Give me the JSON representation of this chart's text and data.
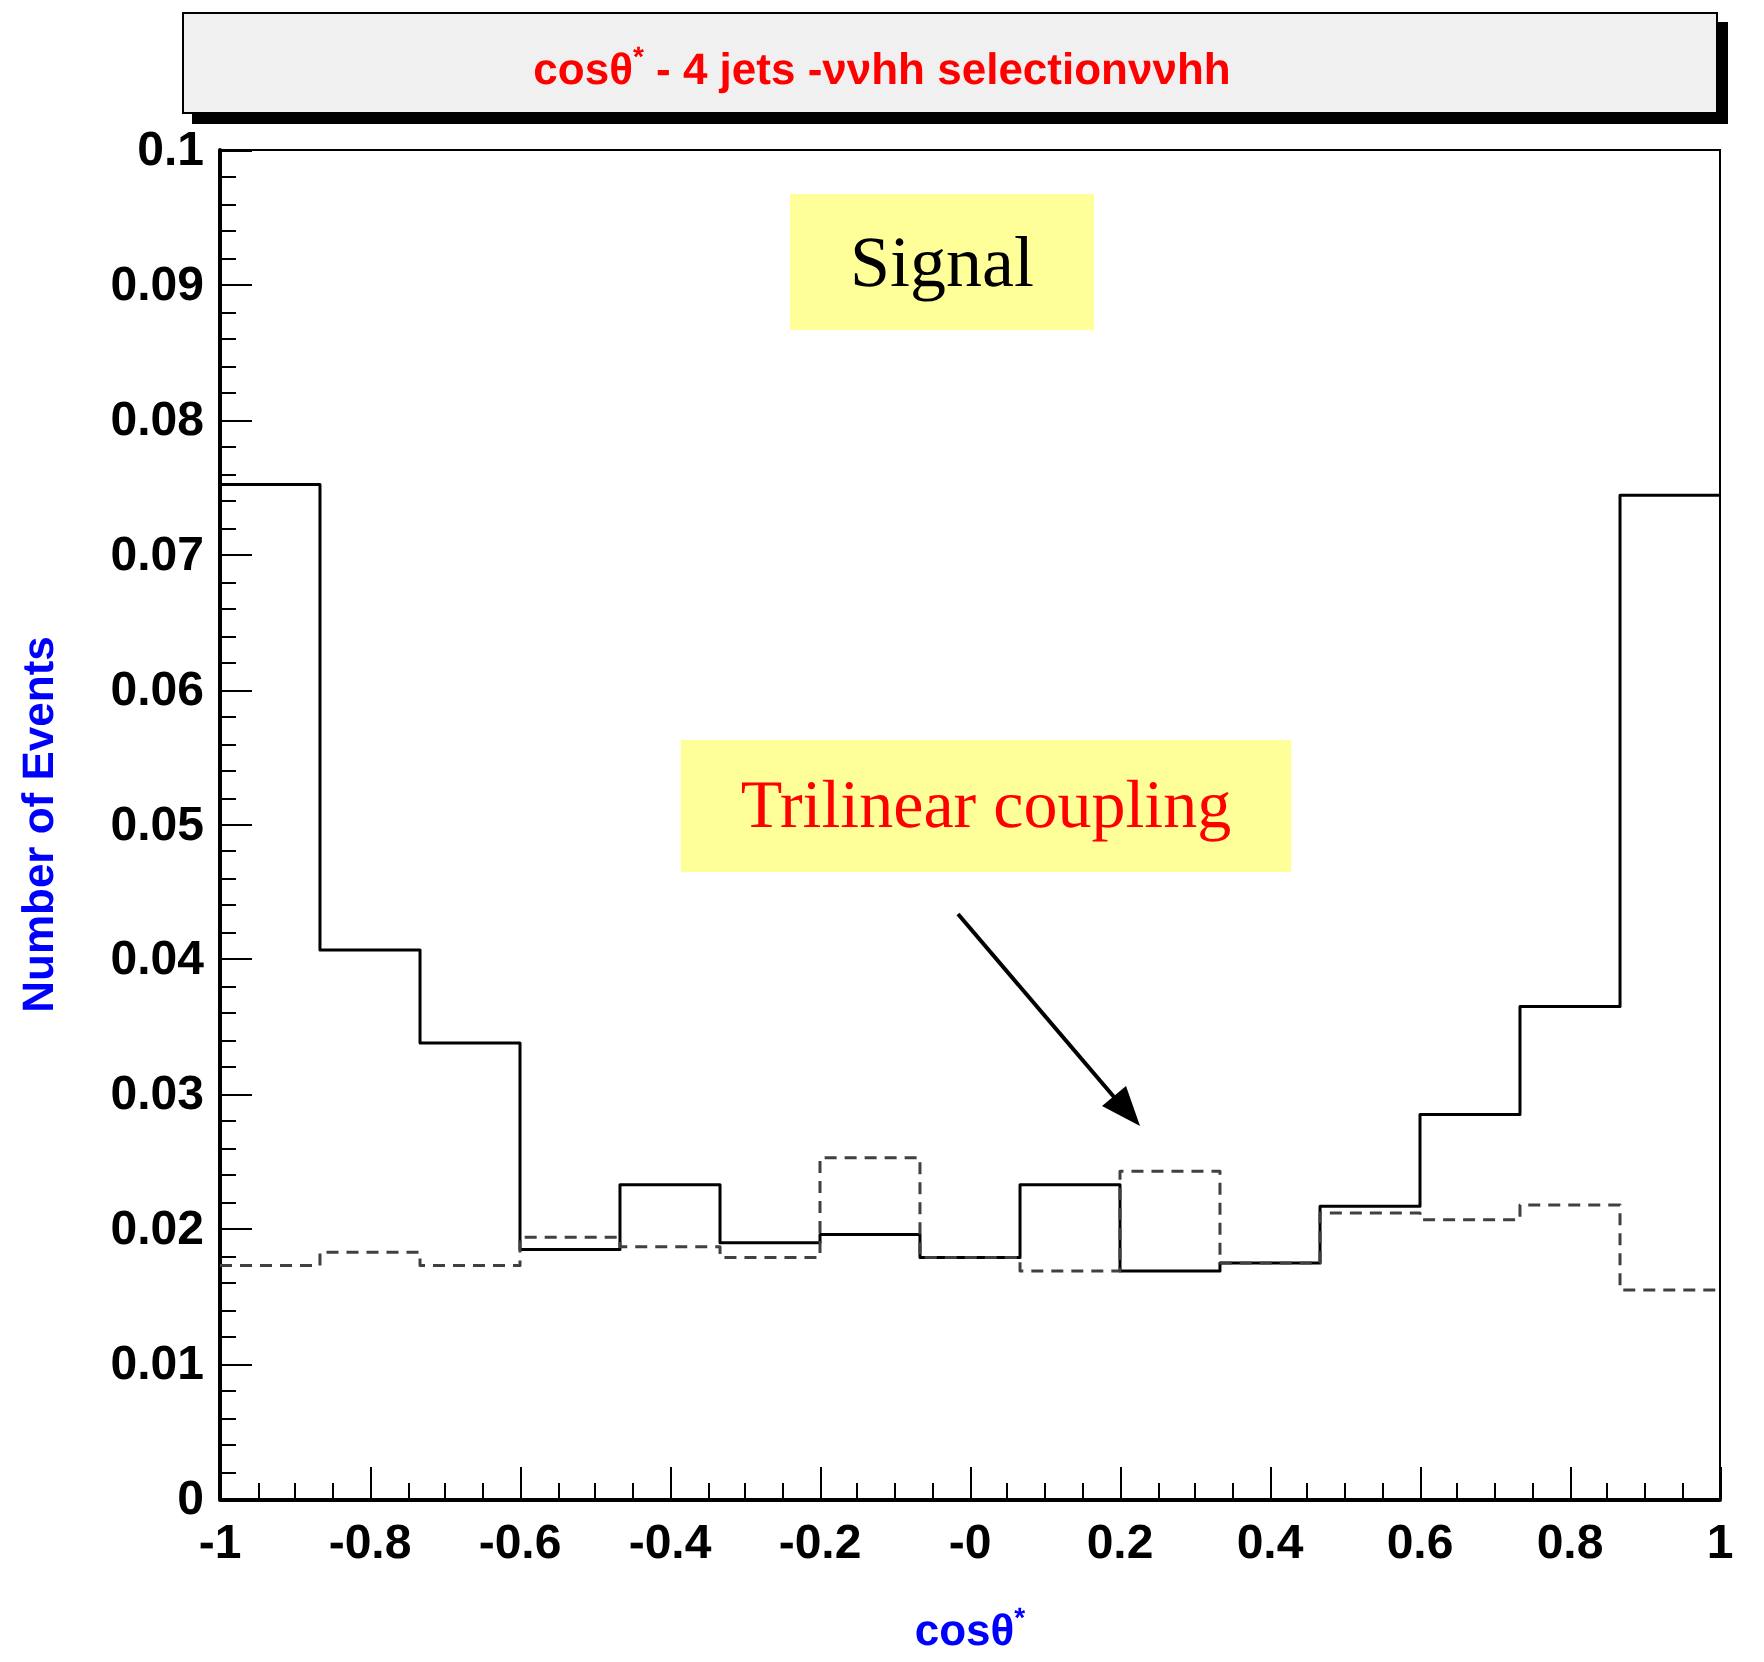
{
  "chart_data": {
    "type": "histogram",
    "title": "cosθ$^{*}$ - 4 jets -ννhh selectionννhh",
    "xlabel": "cosθ$^{*}$",
    "ylabel": "Number of Events",
    "annotations": [
      "Signal",
      "Trilinear coupling"
    ],
    "bins": [
      -1,
      -0.8667,
      -0.7333,
      -0.6,
      -0.4667,
      -0.3333,
      -0.2,
      -0.0667,
      0.0667,
      0.2,
      0.3333,
      0.4667,
      0.6,
      0.7333,
      0.8667,
      1
    ],
    "series": [
      {
        "color": "#000000",
        "line_style": "solid",
        "values": [
          0.0752,
          0.0407,
          0.0338,
          0.0185,
          0.0233,
          0.019,
          0.0196,
          0.0179,
          0.0233,
          0.0169,
          0.0175,
          0.0217,
          0.0285,
          0.0365,
          0.0744
        ]
      },
      {
        "color": "#404040",
        "line_style": "dashed",
        "values": [
          0.0173,
          0.0183,
          0.0173,
          0.0194,
          0.0187,
          0.0179,
          0.0253,
          0.0179,
          0.0169,
          0.0243,
          0.0175,
          0.0212,
          0.0207,
          0.0218,
          0.0155
        ]
      }
    ],
    "xlim": [
      -1,
      1
    ],
    "ylim": [
      0,
      0.1
    ],
    "xticks": [
      -1,
      -0.8,
      -0.6,
      -0.4,
      -0.2,
      {
        "value": 0,
        "label": "-0"
      },
      0.2,
      0.4,
      0.6,
      0.8,
      1
    ],
    "yticks": [
      0,
      0.01,
      0.02,
      0.03,
      0.04,
      0.05,
      0.06,
      0.07,
      0.08,
      0.09,
      0.1
    ]
  }
}
